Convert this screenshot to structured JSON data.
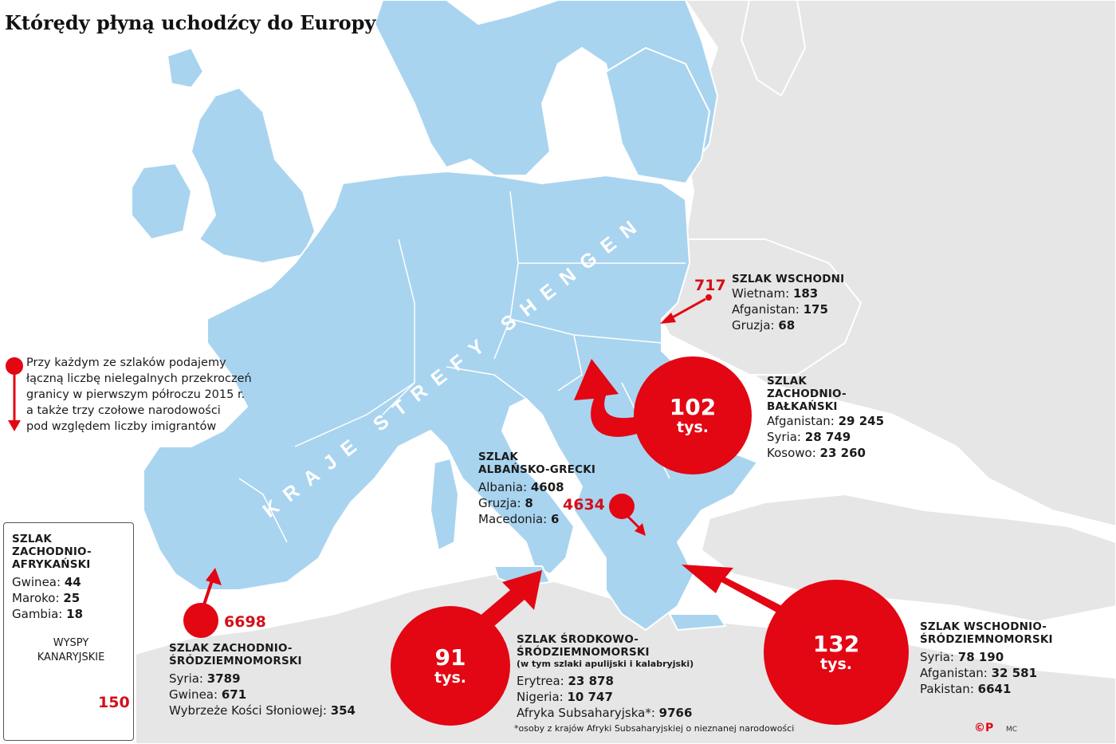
{
  "title": "Którędy płyną uchodźcy do Europy",
  "schengen_label": "KRAJE STREFY SHENGEN",
  "legend_note": [
    "Przy każdym ze szlaków podajemy",
    "łączną liczbę nielegalnych przekroczeń",
    "granicy w pierwszym półroczu 2015 r.",
    "a także trzy czołowe narodowości",
    "pod względem liczby imigrantów"
  ],
  "colors": {
    "land_schengen": "#a9d4ef",
    "land_other": "#e6e6e6",
    "sea": "#ffffff",
    "route_red": "#e30613"
  },
  "routes": {
    "east": {
      "name": "SZLAK WSCHODNI",
      "total": "717",
      "rows": [
        {
          "country": "Wietnam:",
          "value": "183"
        },
        {
          "country": "Afganistan:",
          "value": "175"
        },
        {
          "country": "Gruzja:",
          "value": "68"
        }
      ]
    },
    "west_balkan": {
      "name_lines": [
        "SZLAK",
        "ZACHODNIO-",
        "BAŁKAŃSKI"
      ],
      "total": "102",
      "unit": "tys.",
      "rows": [
        {
          "country": "Afganistan:",
          "value": "29 245"
        },
        {
          "country": "Syria:",
          "value": "28 749"
        },
        {
          "country": "Kosowo:",
          "value": "23 260"
        }
      ]
    },
    "albania_greece": {
      "name_lines": [
        "SZLAK",
        "ALBAŃSKO-GRECKI"
      ],
      "total": "4634",
      "rows": [
        {
          "country": "Albania:",
          "value": "4608"
        },
        {
          "country": "Gruzja:",
          "value": "8"
        },
        {
          "country": "Macedonia:",
          "value": "6"
        }
      ]
    },
    "west_africa": {
      "name_lines": [
        "SZLAK",
        "ZACHODNIO-",
        "AFRYKAŃSKI"
      ],
      "total": "150",
      "islands": "WYSPY KANARYJSKIE",
      "rows": [
        {
          "country": "Gwinea:",
          "value": "44"
        },
        {
          "country": "Maroko:",
          "value": "25"
        },
        {
          "country": "Gambia:",
          "value": "18"
        }
      ]
    },
    "west_med": {
      "name_lines": [
        "SZLAK ZACHODNIO-",
        "ŚRÓDZIEMNOMORSKI"
      ],
      "total": "6698",
      "rows": [
        {
          "country": "Syria:",
          "value": "3789"
        },
        {
          "country": "Gwinea:",
          "value": "671"
        },
        {
          "country": "Wybrzeże Kości Słoniowej:",
          "value": "354"
        }
      ]
    },
    "central_med": {
      "name_lines": [
        "SZLAK ŚRODKOWO-",
        "ŚRÓDZIEMNOMORSKI"
      ],
      "subtitle": "(w tym szlaki apulijski i kalabryjski)",
      "total": "91",
      "unit": "tys.",
      "rows": [
        {
          "country": "Erytrea:",
          "value": "23 878"
        },
        {
          "country": "Nigeria:",
          "value": "10 747"
        },
        {
          "country": "Afryka Subsaharyjska*:",
          "value": "9766"
        }
      ]
    },
    "east_med": {
      "name_lines": [
        "SZLAK WSCHODNIO-",
        "ŚRÓDZIEMNOMORSKI"
      ],
      "total": "132",
      "unit": "tys.",
      "rows": [
        {
          "country": "Syria:",
          "value": "78 190"
        },
        {
          "country": "Afganistan:",
          "value": "32 581"
        },
        {
          "country": "Pakistan:",
          "value": "6641"
        }
      ]
    }
  },
  "footnote": "*osoby z krajów Afryki Subsaharyjskiej o nieznanej narodowości",
  "credit": {
    "logo": "©P",
    "author": "MC"
  }
}
